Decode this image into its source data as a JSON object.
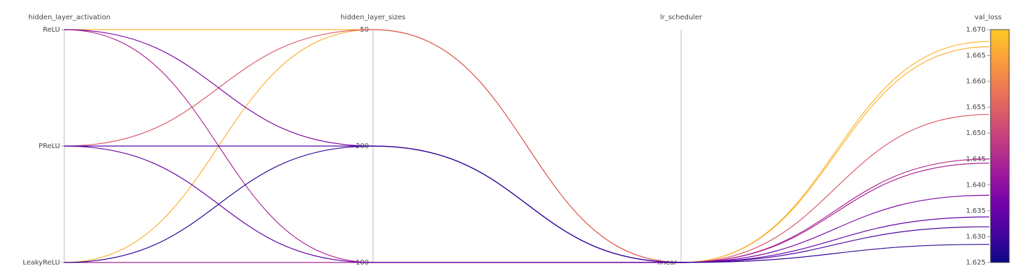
{
  "chart_data": {
    "type": "parallel",
    "axes": [
      {
        "label": "hidden_layer_activation",
        "categories": [
          "ReLU",
          "PReLU",
          "LeakyReLU"
        ]
      },
      {
        "label": "hidden_layer_sizes",
        "categories": [
          "50",
          "200",
          "100"
        ]
      },
      {
        "label": "lr_scheduler",
        "categories": [
          "linear"
        ]
      },
      {
        "label": "val_loss",
        "ylim": [
          1.625,
          1.67
        ],
        "yticks": [
          {
            "value": 1.625,
            "label": "1.625"
          },
          {
            "value": 1.63,
            "label": "1.630"
          },
          {
            "value": 1.635,
            "label": "1.635"
          },
          {
            "value": 1.64,
            "label": "1.640"
          },
          {
            "value": 1.645,
            "label": "1.645"
          },
          {
            "value": 1.65,
            "label": "1.650"
          },
          {
            "value": 1.655,
            "label": "1.655"
          },
          {
            "value": 1.66,
            "label": "1.660"
          },
          {
            "value": 1.665,
            "label": "1.665"
          },
          {
            "value": 1.67,
            "label": "1.670"
          }
        ]
      }
    ],
    "colorscale": [
      "#0d0887",
      "#46039f",
      "#7201a8",
      "#9c179e",
      "#bd3786",
      "#d8576b",
      "#ed7953",
      "#fb9f3a",
      "#fdca26"
    ],
    "series": [
      {
        "values": [
          "ReLU",
          "50",
          "linear",
          1.6677
        ]
      },
      {
        "values": [
          "LeakyReLU",
          "50",
          "linear",
          1.6667
        ]
      },
      {
        "values": [
          "PReLU",
          "50",
          "linear",
          1.6536
        ]
      },
      {
        "values": [
          "ReLU",
          "100",
          "linear",
          1.645
        ]
      },
      {
        "values": [
          "LeakyReLU",
          "100",
          "linear",
          1.6442
        ]
      },
      {
        "values": [
          "ReLU",
          "200",
          "linear",
          1.638
        ]
      },
      {
        "values": [
          "PReLU",
          "100",
          "linear",
          1.6338
        ]
      },
      {
        "values": [
          "PReLU",
          "200",
          "linear",
          1.6319
        ]
      },
      {
        "values": [
          "LeakyReLU",
          "200",
          "linear",
          1.6285
        ]
      }
    ]
  }
}
